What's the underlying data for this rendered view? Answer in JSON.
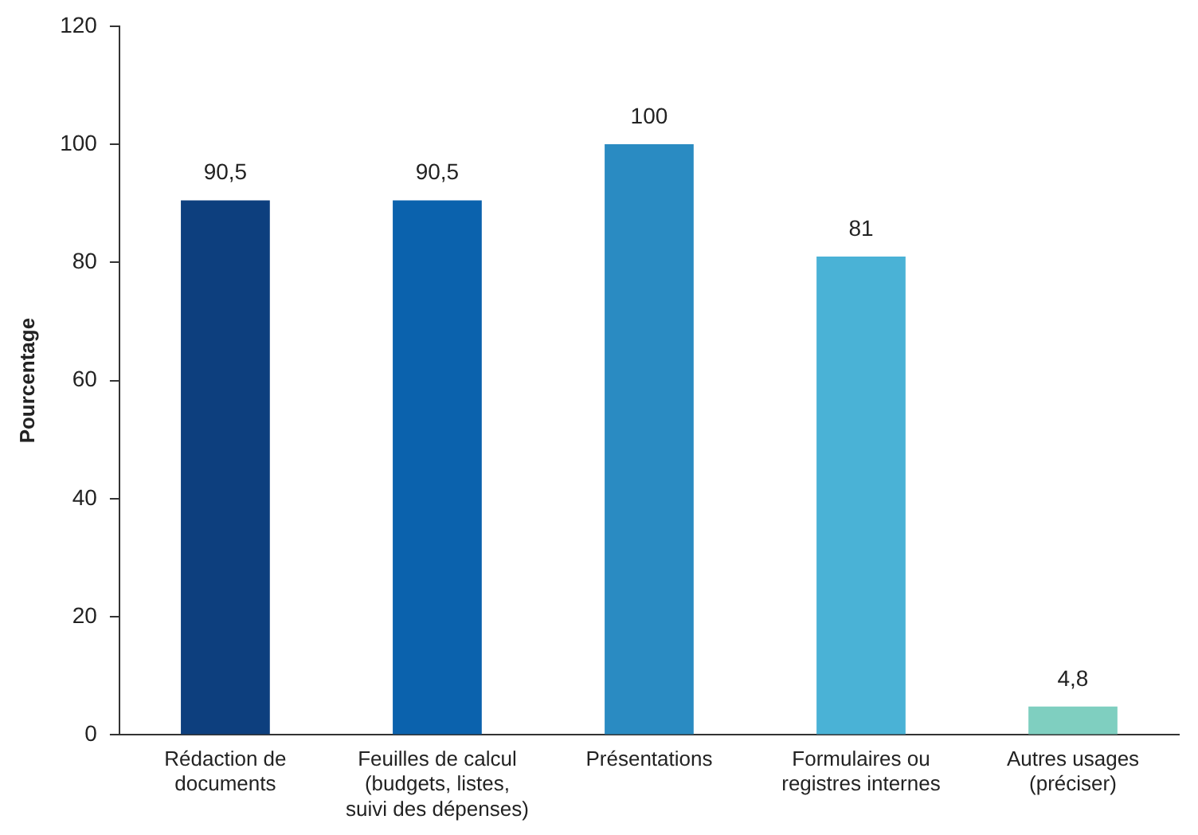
{
  "chart_data": {
    "type": "bar",
    "ylabel": "Pourcentage",
    "categories": [
      "Rédaction de\ndocuments",
      "Feuilles de calcul\n(budgets, listes,\nsuivi des dépenses)",
      "Présentations",
      "Formulaires ou\nregistres internes",
      "Autres usages\n(préciser)"
    ],
    "values": [
      90.5,
      90.5,
      100,
      81,
      4.8
    ],
    "value_labels": [
      "90,5",
      "90,5",
      "100",
      "81",
      "4,8"
    ],
    "colors": [
      "#0d3f7e",
      "#0b62ad",
      "#2a8bc2",
      "#4ab2d6",
      "#7fcfc0"
    ],
    "ylim": [
      0,
      120
    ],
    "yticks": [
      0,
      20,
      40,
      60,
      80,
      100,
      120
    ],
    "grid": false,
    "legend": false
  }
}
